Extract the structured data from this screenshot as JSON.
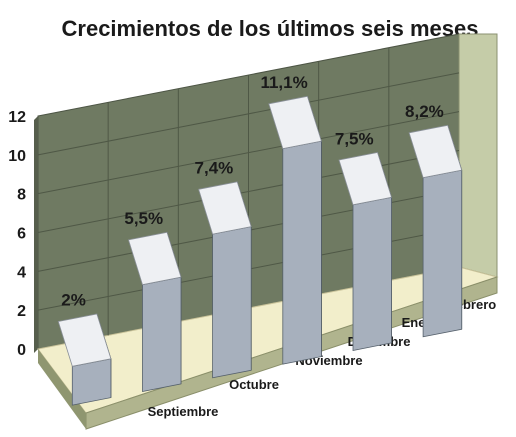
{
  "chart_data": {
    "type": "bar",
    "title": "Crecimientos de los últimos seis meses",
    "categories": [
      "Septiembre",
      "Octubre",
      "Noviembre",
      "Diciembre",
      "Enero",
      "Febrero"
    ],
    "values": [
      2,
      5.5,
      7.4,
      11.1,
      7.5,
      8.2
    ],
    "data_labels": [
      "2%",
      "5,5%",
      "7,4%",
      "11,1%",
      "7,5%",
      "8,2%"
    ],
    "y_ticks": [
      "0",
      "2",
      "4",
      "6",
      "8",
      "10",
      "12"
    ],
    "ylim": [
      0,
      12
    ],
    "grid": true,
    "style": "3d",
    "colors": {
      "wall": "#6f7a62",
      "side_wall": "#c5cca8",
      "floor": "#f2eecb",
      "bar_front": "#a7b0bd",
      "bar_top": "#eef0f3",
      "bar_side": "#5f6670"
    }
  }
}
